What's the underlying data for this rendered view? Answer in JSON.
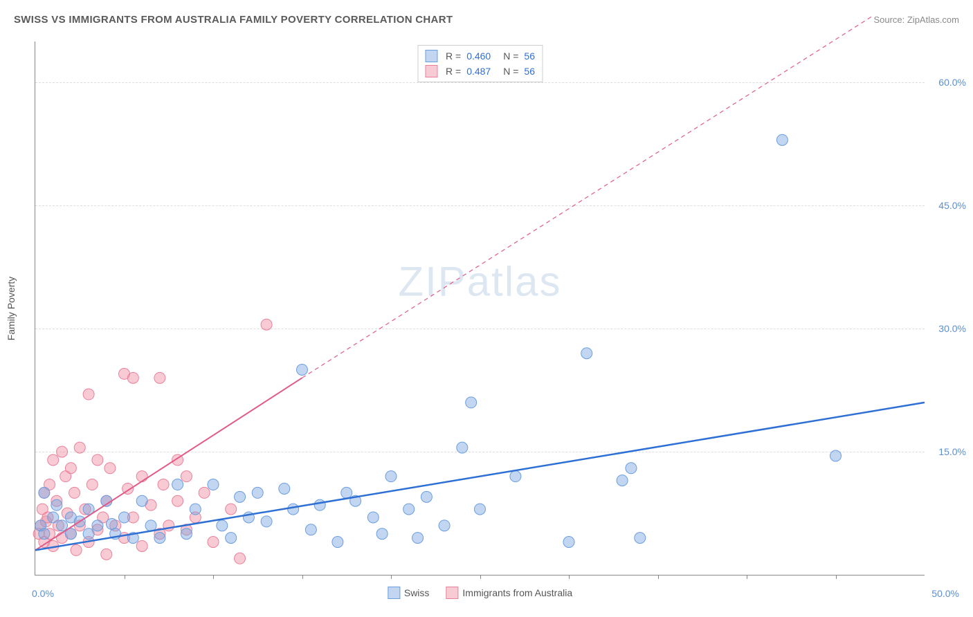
{
  "header": {
    "title": "SWISS VS IMMIGRANTS FROM AUSTRALIA FAMILY POVERTY CORRELATION CHART",
    "source_label": "Source: ",
    "source_value": "ZipAtlas.com"
  },
  "watermark": {
    "part1": "ZIP",
    "part2": "atlas"
  },
  "chart": {
    "type": "scatter",
    "ylabel": "Family Poverty",
    "xlim": [
      0,
      50
    ],
    "ylim": [
      0,
      65
    ],
    "x_min_label": "0.0%",
    "x_max_label": "50.0%",
    "yticks": [
      {
        "value": 15,
        "label": "15.0%"
      },
      {
        "value": 30,
        "label": "30.0%"
      },
      {
        "value": 45,
        "label": "45.0%"
      },
      {
        "value": 60,
        "label": "60.0%"
      }
    ],
    "xtick_positions": [
      5,
      10,
      15,
      20,
      25,
      30,
      35,
      40,
      45
    ],
    "background_color": "#ffffff",
    "grid_color": "#dddddd",
    "axis_color": "#888888",
    "series": [
      {
        "name": "Swiss",
        "color_fill": "rgba(120,165,225,0.45)",
        "color_stroke": "#6a9de0",
        "marker_radius": 8,
        "trend_color": "#2e6fd4",
        "trend_width": 2.5,
        "trend_dash": "none",
        "trend_start": {
          "x": 0,
          "y": 3
        },
        "trend_end": {
          "x": 50,
          "y": 21
        },
        "R": "0.460",
        "N": "56",
        "points": [
          {
            "x": 0.3,
            "y": 6
          },
          {
            "x": 0.5,
            "y": 10
          },
          {
            "x": 0.5,
            "y": 5
          },
          {
            "x": 1,
            "y": 7
          },
          {
            "x": 1.2,
            "y": 8.5
          },
          {
            "x": 1.5,
            "y": 6
          },
          {
            "x": 2,
            "y": 7
          },
          {
            "x": 2,
            "y": 5
          },
          {
            "x": 2.5,
            "y": 6.5
          },
          {
            "x": 3,
            "y": 5
          },
          {
            "x": 3,
            "y": 8
          },
          {
            "x": 3.5,
            "y": 6
          },
          {
            "x": 4,
            "y": 9
          },
          {
            "x": 4.3,
            "y": 6.2
          },
          {
            "x": 4.5,
            "y": 5
          },
          {
            "x": 5,
            "y": 7
          },
          {
            "x": 5.5,
            "y": 4.5
          },
          {
            "x": 6,
            "y": 9
          },
          {
            "x": 6.5,
            "y": 6
          },
          {
            "x": 7,
            "y": 4.5
          },
          {
            "x": 8,
            "y": 11
          },
          {
            "x": 8.5,
            "y": 5
          },
          {
            "x": 9,
            "y": 8
          },
          {
            "x": 10,
            "y": 11
          },
          {
            "x": 10.5,
            "y": 6
          },
          {
            "x": 11,
            "y": 4.5
          },
          {
            "x": 11.5,
            "y": 9.5
          },
          {
            "x": 12,
            "y": 7
          },
          {
            "x": 12.5,
            "y": 10
          },
          {
            "x": 13,
            "y": 6.5
          },
          {
            "x": 14,
            "y": 10.5
          },
          {
            "x": 14.5,
            "y": 8
          },
          {
            "x": 15,
            "y": 25
          },
          {
            "x": 15.5,
            "y": 5.5
          },
          {
            "x": 16,
            "y": 8.5
          },
          {
            "x": 17,
            "y": 4
          },
          {
            "x": 17.5,
            "y": 10
          },
          {
            "x": 18,
            "y": 9
          },
          {
            "x": 19,
            "y": 7
          },
          {
            "x": 19.5,
            "y": 5
          },
          {
            "x": 20,
            "y": 12
          },
          {
            "x": 21,
            "y": 8
          },
          {
            "x": 21.5,
            "y": 4.5
          },
          {
            "x": 22,
            "y": 9.5
          },
          {
            "x": 23,
            "y": 6
          },
          {
            "x": 24,
            "y": 15.5
          },
          {
            "x": 24.5,
            "y": 21
          },
          {
            "x": 25,
            "y": 8
          },
          {
            "x": 27,
            "y": 12
          },
          {
            "x": 30,
            "y": 4
          },
          {
            "x": 31,
            "y": 27
          },
          {
            "x": 33,
            "y": 11.5
          },
          {
            "x": 33.5,
            "y": 13
          },
          {
            "x": 34,
            "y": 4.5
          },
          {
            "x": 42,
            "y": 53
          },
          {
            "x": 45,
            "y": 14.5
          }
        ]
      },
      {
        "name": "Immigrants from Australia",
        "color_fill": "rgba(240,140,160,0.45)",
        "color_stroke": "#ea809a",
        "marker_radius": 8,
        "trend_color": "#e05a8a",
        "trend_width": 2,
        "trend_dash": "solid_then_dash",
        "trend_start": {
          "x": 0,
          "y": 3
        },
        "trend_mid": {
          "x": 15,
          "y": 24
        },
        "trend_end": {
          "x": 47,
          "y": 68
        },
        "R": "0.487",
        "N": "56",
        "points": [
          {
            "x": 0.2,
            "y": 5
          },
          {
            "x": 0.3,
            "y": 6
          },
          {
            "x": 0.4,
            "y": 8
          },
          {
            "x": 0.5,
            "y": 4
          },
          {
            "x": 0.5,
            "y": 10
          },
          {
            "x": 0.6,
            "y": 6.5
          },
          {
            "x": 0.7,
            "y": 7
          },
          {
            "x": 0.8,
            "y": 11
          },
          {
            "x": 0.8,
            "y": 5
          },
          {
            "x": 1,
            "y": 14
          },
          {
            "x": 1,
            "y": 3.5
          },
          {
            "x": 1.2,
            "y": 9
          },
          {
            "x": 1.3,
            "y": 6
          },
          {
            "x": 1.5,
            "y": 15
          },
          {
            "x": 1.5,
            "y": 4.5
          },
          {
            "x": 1.7,
            "y": 12
          },
          {
            "x": 1.8,
            "y": 7.5
          },
          {
            "x": 2,
            "y": 5
          },
          {
            "x": 2,
            "y": 13
          },
          {
            "x": 2.2,
            "y": 10
          },
          {
            "x": 2.3,
            "y": 3
          },
          {
            "x": 2.5,
            "y": 6
          },
          {
            "x": 2.5,
            "y": 15.5
          },
          {
            "x": 2.8,
            "y": 8
          },
          {
            "x": 3,
            "y": 22
          },
          {
            "x": 3,
            "y": 4
          },
          {
            "x": 3.2,
            "y": 11
          },
          {
            "x": 3.5,
            "y": 14
          },
          {
            "x": 3.5,
            "y": 5.5
          },
          {
            "x": 3.8,
            "y": 7
          },
          {
            "x": 4,
            "y": 9
          },
          {
            "x": 4,
            "y": 2.5
          },
          {
            "x": 4.2,
            "y": 13
          },
          {
            "x": 4.5,
            "y": 6
          },
          {
            "x": 5,
            "y": 24.5
          },
          {
            "x": 5,
            "y": 4.5
          },
          {
            "x": 5.2,
            "y": 10.5
          },
          {
            "x": 5.5,
            "y": 7
          },
          {
            "x": 5.5,
            "y": 24
          },
          {
            "x": 6,
            "y": 12
          },
          {
            "x": 6,
            "y": 3.5
          },
          {
            "x": 6.5,
            "y": 8.5
          },
          {
            "x": 7,
            "y": 5
          },
          {
            "x": 7,
            "y": 24
          },
          {
            "x": 7.2,
            "y": 11
          },
          {
            "x": 7.5,
            "y": 6
          },
          {
            "x": 8,
            "y": 9
          },
          {
            "x": 8,
            "y": 14
          },
          {
            "x": 8.5,
            "y": 5.5
          },
          {
            "x": 8.5,
            "y": 12
          },
          {
            "x": 9,
            "y": 7
          },
          {
            "x": 9.5,
            "y": 10
          },
          {
            "x": 10,
            "y": 4
          },
          {
            "x": 11,
            "y": 8
          },
          {
            "x": 13,
            "y": 30.5
          },
          {
            "x": 11.5,
            "y": 2
          }
        ]
      }
    ],
    "stats_legend": {
      "r_label": "R =",
      "n_label": "N ="
    }
  }
}
